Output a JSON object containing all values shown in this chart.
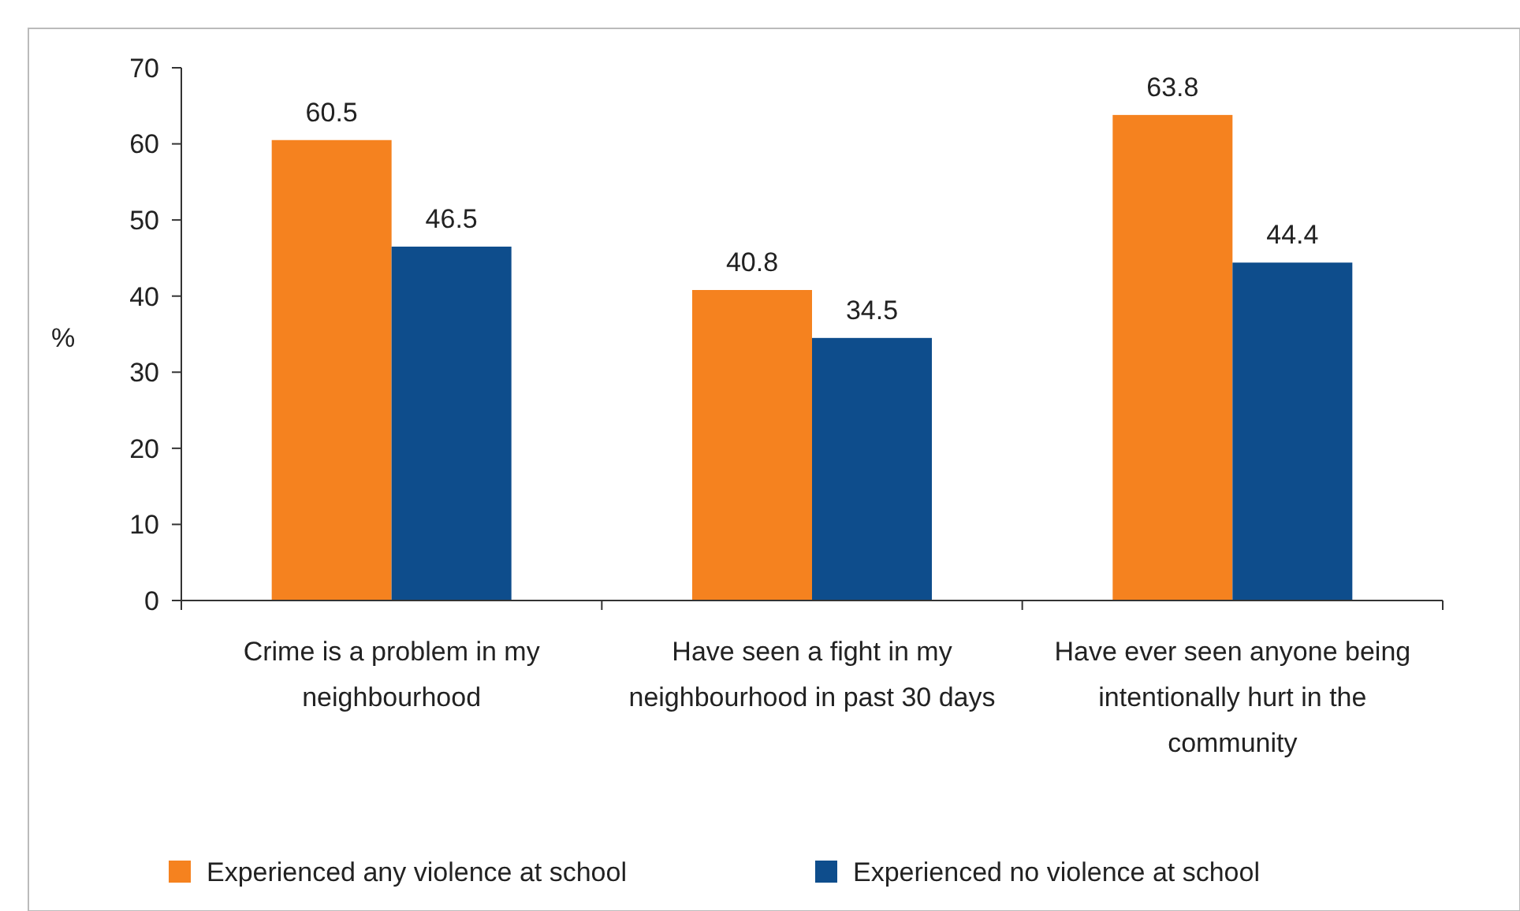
{
  "chart_data": {
    "type": "bar",
    "ylabel": "%",
    "categories": [
      "Crime is a problem in my neighbourhood",
      "Have seen a fight in my neighbourhood in past 30 days",
      "Have ever seen anyone being intentionally hurt in the community"
    ],
    "series": [
      {
        "name": "Experienced any violence at school",
        "color": "#f5821f",
        "values": [
          60.5,
          40.8,
          63.8
        ]
      },
      {
        "name": "Experienced no violence at school",
        "color": "#0e4d8c",
        "values": [
          46.5,
          34.5,
          44.4
        ]
      }
    ],
    "ylim": [
      0,
      70
    ],
    "yticks": [
      0,
      10,
      20,
      30,
      40,
      50,
      60,
      70
    ],
    "grid": false,
    "data_labels": true,
    "legend": "bottom"
  }
}
